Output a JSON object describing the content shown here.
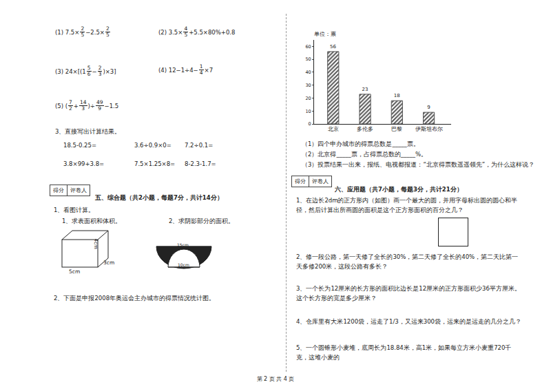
{
  "left": {
    "calc": [
      [
        "(1) 7.5×",
        {
          "n": "2",
          "d": "5"
        },
        "−2.5×",
        {
          "n": "2",
          "d": "5"
        }
      ],
      [
        "(2) 3.5×",
        {
          "n": "4",
          "d": "5"
        },
        "+5.5×80%+0.8"
      ],
      [
        "(3)  24×[(1",
        {
          "n": "5",
          "d": "6"
        },
        "−",
        {
          "n": "2",
          "d": "3"
        },
        ")×3]"
      ],
      [
        "(4) 12−1÷4−",
        {
          "n": "1",
          "d": "4"
        },
        "×7"
      ],
      [
        "(5) (",
        {
          "n": "7",
          "d": "2"
        },
        "+",
        {
          "n": "14",
          "d": "3"
        },
        ")÷",
        {
          "n": "49",
          "d": "9"
        },
        "−1.5"
      ]
    ],
    "direct": {
      "title": "3、直接写出计算结果。",
      "items": [
        [
          "18.5-0.25=",
          "3.6÷0.9×0=",
          "7.2÷0.1="
        ],
        [
          "3.8×99+3.8=",
          "7.5×1.25×8=",
          "8-2.3-1.7="
        ]
      ]
    },
    "section5": {
      "score_box": [
        "得分",
        "评卷人"
      ],
      "heading": "五、综合题（共2小题，每题7分，共计14分）",
      "q1": "1、看图计算。",
      "sub1": "1、求表面积和体积。",
      "sub2": "2、求阴影部分的面积。",
      "figure1_labels": [
        "4cm",
        "3cm",
        "5cm"
      ],
      "figure2_labels": [
        "15cm",
        "10cm"
      ],
      "q2": "2、下面是申报2008年奥运会主办城市的得票情况统计图。"
    }
  },
  "chart_data": {
    "type": "bar",
    "title": "单位：票",
    "categories": [
      "北京",
      "多伦多",
      "巴黎",
      "伊斯坦布尔"
    ],
    "values": [
      56,
      23,
      18,
      9
    ],
    "color": "#555555",
    "ylim": [
      0,
      65
    ],
    "yticks": [
      0,
      10,
      20,
      30,
      40,
      50,
      60
    ],
    "grid": false,
    "data_labels": true
  },
  "right": {
    "chart_questions": [
      "（1）四个申办城市的得票总数是_____票。",
      "（2）北京得_____票，占得票总数的_____%。",
      "（3）投票结果一出来，报纸、电视都报道：“北京得票数遥遥领先”，为什么这样说？"
    ],
    "section6": {
      "score_box": [
        "得分",
        "评卷人"
      ],
      "heading": "六、应用题（共7小题，每题3分，共计21分）",
      "questions": [
        "1、在边长2dm的正方形内（如图）画一个最大的圆，并用字母标出圆的圆心和半径，然后计算出所画圆的面积是这个正方形面积的百分之几？",
        "2、修一段公路，第一天修了全长的30%，第二天修了全长的40%，第二天比第一天多修200米，这段公路有多长？",
        "3、一个长为12厘米的长方形的面积比边长是12厘米的正方形面积少36平方厘米。这个长方形的宽是多少厘米？",
        "4、仓库里有大米1200袋，运走了1/3，又运来300袋，运来的是运走的几分之几？",
        "5、一个圆锥形小麦堆，底周长为18.84米，高1米，如果每立方米小麦重720千克，这堆小麦的"
      ]
    }
  },
  "footer": "第 2 页 共 4 页"
}
